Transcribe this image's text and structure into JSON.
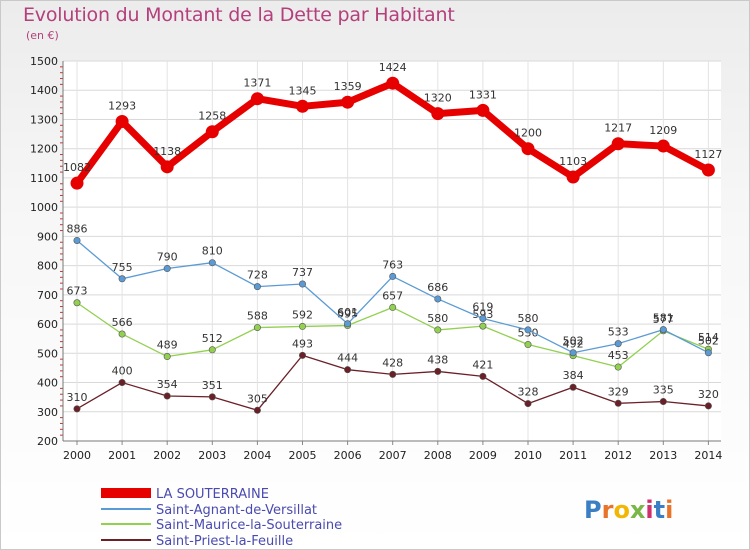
{
  "title": "Evolution du Montant de la Dette par Habitant",
  "unit": "(en €)",
  "logo": "Proxiti",
  "colors": {
    "title": "#b43f7c",
    "series": [
      "#e60000",
      "#5b9bd5",
      "#92d050",
      "#6b1f27"
    ]
  },
  "chart_data": {
    "type": "line",
    "x": [
      "2000",
      "2001",
      "2002",
      "2003",
      "2004",
      "2005",
      "2006",
      "2007",
      "2008",
      "2009",
      "2010",
      "2011",
      "2012",
      "2013",
      "2014"
    ],
    "ylim": [
      200,
      1500
    ],
    "yticks": [
      200,
      300,
      400,
      500,
      600,
      700,
      800,
      900,
      1000,
      1100,
      1200,
      1300,
      1400,
      1500
    ],
    "grid": true,
    "legend_position": "bottom-left",
    "series": [
      {
        "name": "LA SOUTERRAINE",
        "values": [
          1082,
          1293,
          1138,
          1258,
          1371,
          1345,
          1359,
          1424,
          1320,
          1331,
          1200,
          1103,
          1217,
          1209,
          1127
        ]
      },
      {
        "name": "Saint-Agnant-de-Versillat",
        "values": [
          886,
          755,
          790,
          810,
          728,
          737,
          601,
          763,
          686,
          619,
          580,
          502,
          533,
          581,
          502
        ]
      },
      {
        "name": "Saint-Maurice-la-Souterraine",
        "values": [
          673,
          566,
          489,
          512,
          588,
          592,
          595,
          657,
          580,
          593,
          530,
          492,
          453,
          577,
          514
        ]
      },
      {
        "name": "Saint-Priest-la-Feuille",
        "values": [
          310,
          400,
          354,
          351,
          305,
          493,
          444,
          428,
          438,
          421,
          328,
          384,
          329,
          335,
          320
        ]
      }
    ]
  }
}
